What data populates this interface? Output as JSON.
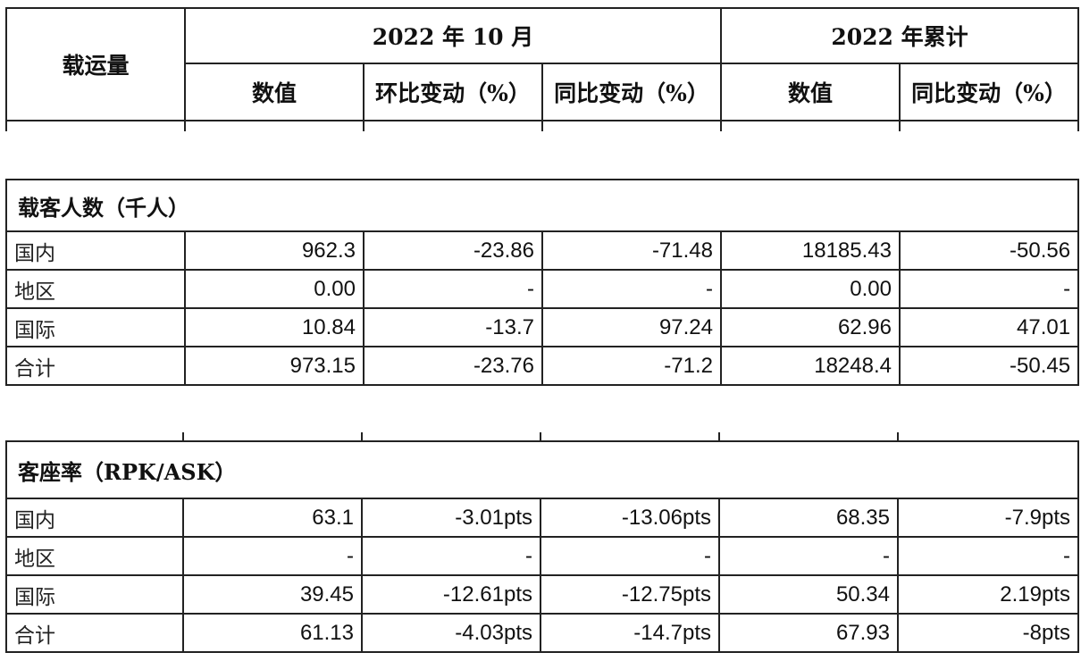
{
  "header": {
    "row_label": "载运量",
    "group_month": "2022 年 10 月",
    "group_cumulative": "2022 年累计",
    "col_value": "数值",
    "col_mom": "环比变动（%）",
    "col_yoy": "同比变动（%）",
    "col_value_cum": "数值",
    "col_yoy_cum": "同比变动（%）"
  },
  "passengers": {
    "title": "载客人数（千人）",
    "rows": [
      {
        "label": "国内",
        "value": "962.3",
        "mom": "-23.86",
        "yoy": "-71.48",
        "cum_value": "18185.43",
        "cum_yoy": "-50.56"
      },
      {
        "label": "地区",
        "value": "0.00",
        "mom": "-",
        "yoy": "-",
        "cum_value": "0.00",
        "cum_yoy": "-"
      },
      {
        "label": "国际",
        "value": "10.84",
        "mom": "-13.7",
        "yoy": "97.24",
        "cum_value": "62.96",
        "cum_yoy": "47.01"
      },
      {
        "label": "合计",
        "value": "973.15",
        "mom": "-23.76",
        "yoy": "-71.2",
        "cum_value": "18248.4",
        "cum_yoy": "-50.45"
      }
    ]
  },
  "load_factor": {
    "title": "客座率（RPK/ASK）",
    "rows": [
      {
        "label": "国内",
        "value": "63.1",
        "mom": "-3.01pts",
        "yoy": "-13.06pts",
        "cum_value": "68.35",
        "cum_yoy": "-7.9pts"
      },
      {
        "label": "地区",
        "value": "-",
        "mom": "-",
        "yoy": "-",
        "cum_value": "-",
        "cum_yoy": "-"
      },
      {
        "label": "国际",
        "value": "39.45",
        "mom": "-12.61pts",
        "yoy": "-12.75pts",
        "cum_value": "50.34",
        "cum_yoy": "2.19pts"
      },
      {
        "label": "合计",
        "value": "61.13",
        "mom": "-4.03pts",
        "yoy": "-14.7pts",
        "cum_value": "67.93",
        "cum_yoy": "-8pts"
      }
    ]
  }
}
